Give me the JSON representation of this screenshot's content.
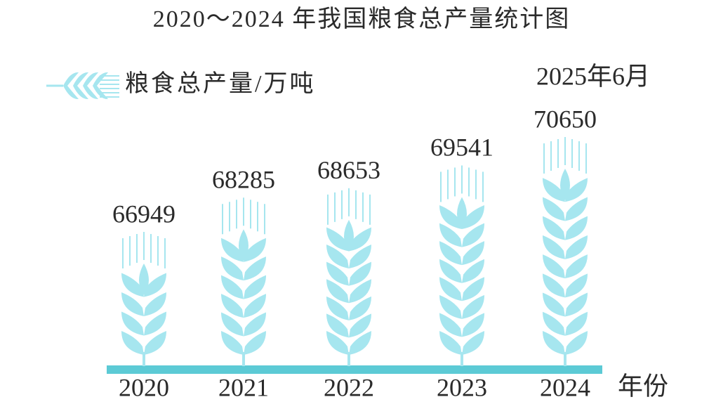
{
  "chart_data": {
    "type": "bar",
    "title": "2020～2024 年我国粮食总产量统计图",
    "categories": [
      "2020",
      "2021",
      "2022",
      "2023",
      "2024"
    ],
    "series": [
      {
        "name": "粮食总产量/万吨",
        "color": "#a6e6ef",
        "values": [
          66949,
          68285,
          68653,
          69541,
          70650
        ]
      }
    ],
    "annotation": "2025年6月",
    "xlabel": "年份",
    "axis_color": "#5ccad5"
  }
}
